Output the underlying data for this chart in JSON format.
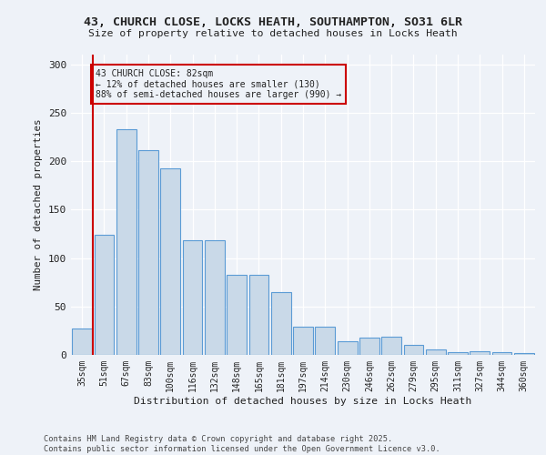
{
  "title1": "43, CHURCH CLOSE, LOCKS HEATH, SOUTHAMPTON, SO31 6LR",
  "title2": "Size of property relative to detached houses in Locks Heath",
  "xlabel": "Distribution of detached houses by size in Locks Heath",
  "ylabel": "Number of detached properties",
  "bar_labels": [
    "35sqm",
    "51sqm",
    "67sqm",
    "83sqm",
    "100sqm",
    "116sqm",
    "132sqm",
    "148sqm",
    "165sqm",
    "181sqm",
    "197sqm",
    "214sqm",
    "230sqm",
    "246sqm",
    "262sqm",
    "279sqm",
    "295sqm",
    "311sqm",
    "327sqm",
    "344sqm",
    "360sqm"
  ],
  "bar_values": [
    27,
    124,
    233,
    211,
    193,
    118,
    118,
    83,
    83,
    65,
    29,
    29,
    14,
    18,
    19,
    10,
    6,
    3,
    4,
    3,
    2
  ],
  "bar_color": "#c9d9e8",
  "bar_edge_color": "#5b9bd5",
  "vline_color": "#cc0000",
  "annotation_text": "43 CHURCH CLOSE: 82sqm\n← 12% of detached houses are smaller (130)\n88% of semi-detached houses are larger (990) →",
  "ylim": [
    0,
    310
  ],
  "yticks": [
    0,
    50,
    100,
    150,
    200,
    250,
    300
  ],
  "footer1": "Contains HM Land Registry data © Crown copyright and database right 2025.",
  "footer2": "Contains public sector information licensed under the Open Government Licence v3.0.",
  "bg_color": "#eef2f8"
}
